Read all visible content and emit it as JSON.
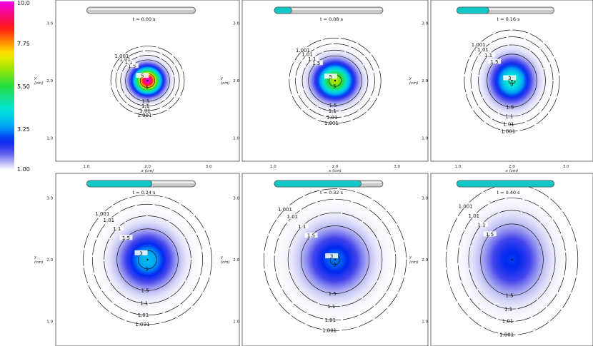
{
  "chart_data": {
    "type": "heatmap",
    "colorbar": {
      "ticks": [
        "10.0",
        "7.75",
        "5.50",
        "3.25",
        "1.00"
      ],
      "range": [
        1.0,
        10.0
      ]
    },
    "x_ticks": [
      "1.0",
      "2.0",
      "3.0"
    ],
    "y_ticks": [
      "3.0",
      "2.0",
      "1.0"
    ],
    "x_label": "x (cm)",
    "y_label": "y (cm)",
    "y_label_unit": "(cm)",
    "y_label_var": "y",
    "frames": [
      {
        "time_label": "t = 0.00 s",
        "t": 0.0,
        "progress": 0.0,
        "peak": 10.0,
        "core_radius": 0.25,
        "contours": [
          {
            "level": "5",
            "r": 0.12
          },
          {
            "level": "1.5",
            "r": 0.36
          },
          {
            "level": "1.1",
            "r": 0.44
          },
          {
            "level": "1.01",
            "r": 0.52
          },
          {
            "level": "1.001",
            "r": 0.6
          }
        ]
      },
      {
        "time_label": "t = 0.08 s",
        "t": 0.08,
        "progress": 0.16,
        "peak": 6.6,
        "core_radius": 0.33,
        "contours": [
          {
            "level": "5",
            "r": 0.1
          },
          {
            "level": "1.5",
            "r": 0.43
          },
          {
            "level": "1.1",
            "r": 0.53
          },
          {
            "level": "1.01",
            "r": 0.64
          },
          {
            "level": "1.001",
            "r": 0.74
          }
        ]
      },
      {
        "time_label": "t = 0.16 s",
        "t": 0.16,
        "progress": 0.33,
        "peak": 4.6,
        "core_radius": 0.4,
        "contours": [
          {
            "level": "3",
            "r": 0.06
          },
          {
            "level": "1.5",
            "r": 0.46
          },
          {
            "level": "1.1",
            "r": 0.62
          },
          {
            "level": "1.01",
            "r": 0.76
          },
          {
            "level": "1.001",
            "r": 0.88
          }
        ]
      },
      {
        "time_label": "t = 0.24 s",
        "t": 0.24,
        "progress": 0.6,
        "peak": 3.6,
        "core_radius": 0.48,
        "contours": [
          {
            "level": "3",
            "r": 0.15
          },
          {
            "level": "1.5",
            "r": 0.5
          },
          {
            "level": "1.1",
            "r": 0.71
          },
          {
            "level": "1.01",
            "r": 0.9
          },
          {
            "level": "1.001",
            "r": 1.05
          }
        ]
      },
      {
        "time_label": "t = 0.32 s",
        "t": 0.32,
        "progress": 0.8,
        "peak": 3.0,
        "core_radius": 0.55,
        "contours": [
          {
            "level": "3",
            "r": 0.08
          },
          {
            "level": "1.5",
            "r": 0.55
          },
          {
            "level": "1.1",
            "r": 0.76
          },
          {
            "level": "1.01",
            "r": 0.98
          },
          {
            "level": "1.001",
            "r": 1.15
          }
        ]
      },
      {
        "time_label": "t = 0.40 s",
        "t": 0.4,
        "progress": 1.0,
        "peak": 2.7,
        "core_radius": 0.62,
        "contours": [
          {
            "level": "1.5",
            "r": 0.58
          },
          {
            "level": "1.1",
            "r": 0.8
          },
          {
            "level": "1.01",
            "r": 1.0
          },
          {
            "level": "1.001",
            "r": 1.22
          }
        ]
      }
    ]
  }
}
